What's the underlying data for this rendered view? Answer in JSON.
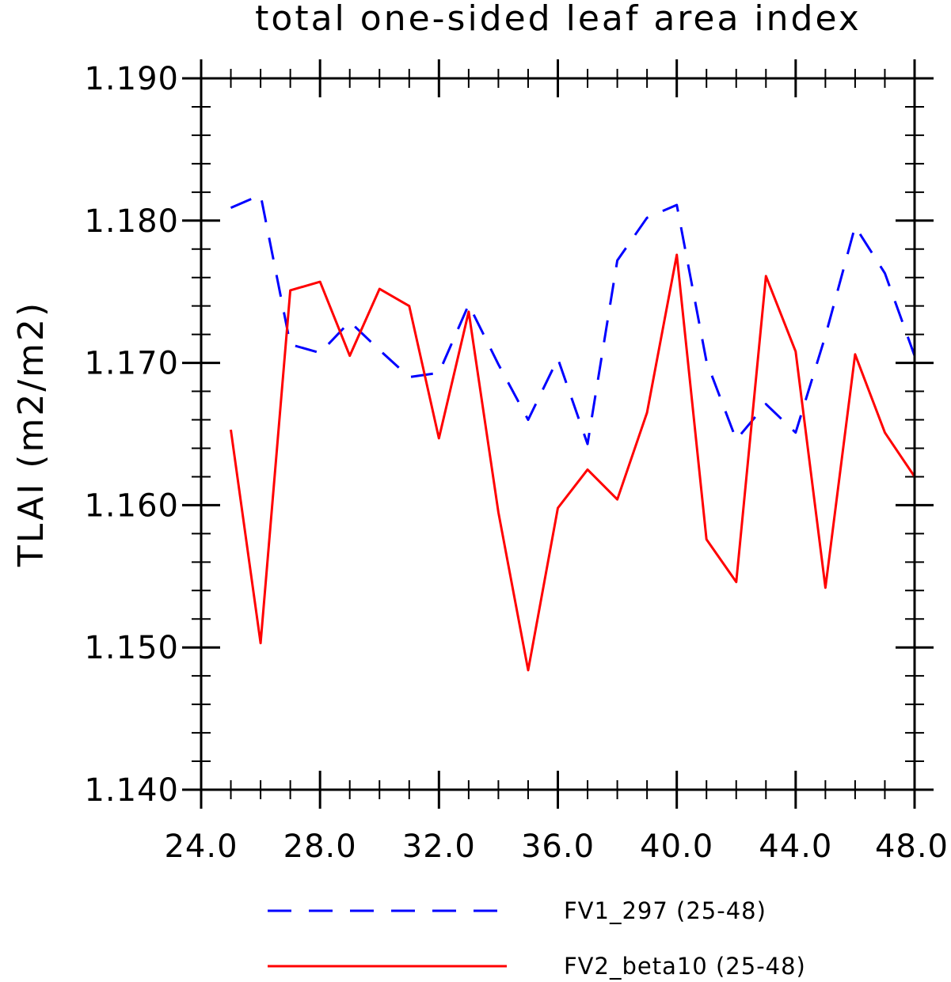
{
  "chart_data": {
    "type": "line",
    "title": "total one-sided leaf area index",
    "ylabel": "TLAI  (m2/m2)",
    "xlabel": "",
    "xlim": [
      24,
      48
    ],
    "ylim": [
      1.14,
      1.19
    ],
    "x_ticks": [
      24,
      28,
      32,
      36,
      40,
      44,
      48
    ],
    "x_tick_labels": [
      "24.0",
      "28.0",
      "32.0",
      "36.0",
      "40.0",
      "44.0",
      "48.0"
    ],
    "y_ticks": [
      1.14,
      1.15,
      1.16,
      1.17,
      1.18,
      1.19
    ],
    "y_tick_labels": [
      "1.140",
      "1.150",
      "1.160",
      "1.170",
      "1.180",
      "1.190"
    ],
    "grid": false,
    "legend_position": "bottom",
    "x": [
      25,
      26,
      27,
      28,
      29,
      30,
      31,
      32,
      33,
      34,
      35,
      36,
      37,
      38,
      39,
      40,
      41,
      42,
      43,
      44,
      45,
      46,
      47,
      48
    ],
    "series": [
      {
        "name": "FV1_297 (25-48)",
        "color": "#0000ff",
        "style": "dashed",
        "values": [
          1.1809,
          1.1818,
          1.1713,
          1.1707,
          1.1729,
          1.1709,
          1.169,
          1.1693,
          1.1741,
          1.1699,
          1.166,
          1.1703,
          1.1643,
          1.1772,
          1.1802,
          1.1811,
          1.1701,
          1.1646,
          1.1671,
          1.1651,
          1.1719,
          1.1796,
          1.1763,
          1.1705
        ]
      },
      {
        "name": "FV2_beta10 (25-48)",
        "color": "#ff0000",
        "style": "solid",
        "values": [
          1.1653,
          1.1503,
          1.1751,
          1.1757,
          1.1705,
          1.1752,
          1.174,
          1.1647,
          1.1736,
          1.1595,
          1.1484,
          1.1598,
          1.1625,
          1.1604,
          1.1665,
          1.1776,
          1.1576,
          1.1546,
          1.1761,
          1.1708,
          1.1542,
          1.1706,
          1.1651,
          1.162
        ]
      }
    ]
  }
}
